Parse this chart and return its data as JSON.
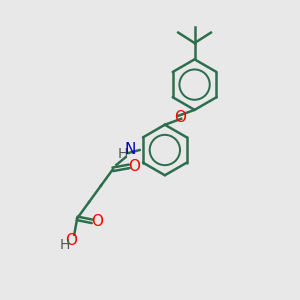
{
  "bg_color": "#e8e8e8",
  "bond_color": "#2d6e4e",
  "atom_colors": {
    "O": "#ff0000",
    "N": "#0000cc",
    "C": "#2d6e4e",
    "H": "#555555"
  },
  "line_width": 1.8,
  "font_size": 11,
  "figsize": [
    3.0,
    3.0
  ],
  "dpi": 100
}
